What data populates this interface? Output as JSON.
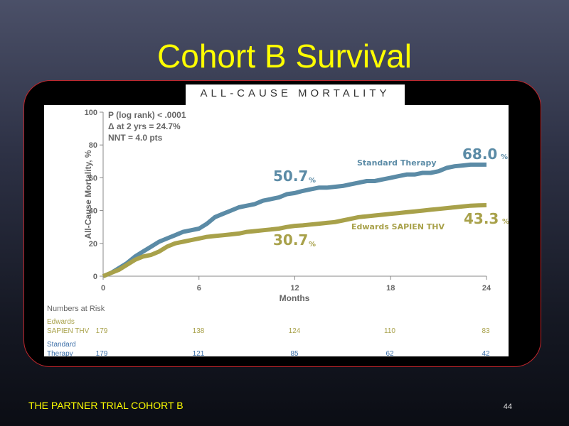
{
  "slide": {
    "title": "Cohort B Survival",
    "banner": "ALL-CAUSE MORTALITY",
    "footer": "THE PARTNER TRIAL COHORT B",
    "page_number": "44"
  },
  "chart_data": {
    "type": "line",
    "xlabel": "Months",
    "ylabel": "All-Cause Mortality, %",
    "xlim": [
      0,
      24
    ],
    "ylim": [
      0,
      100
    ],
    "x_ticks": [
      "0",
      "6",
      "12",
      "18",
      "24"
    ],
    "y_ticks": [
      "0",
      "20",
      "40",
      "60",
      "80",
      "100"
    ],
    "grid": false,
    "stats": [
      "P (log rank) < .0001",
      "Δ at 2 yrs = 24.7%",
      "NNT = 4.0 pts"
    ],
    "series": [
      {
        "name": "Standard Therapy",
        "color": "#5b8ba6",
        "x": [
          0,
          0.5,
          1,
          1.5,
          2,
          2.5,
          3,
          3.5,
          4,
          4.5,
          5,
          5.5,
          6,
          6.5,
          7,
          7.5,
          8,
          8.5,
          9,
          9.5,
          10,
          10.5,
          11,
          11.5,
          12,
          12.5,
          13,
          13.5,
          14,
          14.5,
          15,
          15.5,
          16,
          16.5,
          17,
          17.5,
          18,
          18.5,
          19,
          19.5,
          20,
          20.5,
          21,
          21.5,
          22,
          22.5,
          23,
          23.5,
          24
        ],
        "values": [
          0,
          2,
          5,
          8,
          12,
          15,
          18,
          21,
          23,
          25,
          27,
          28,
          29,
          32,
          36,
          38,
          40,
          42,
          43,
          44,
          46,
          47,
          48,
          50,
          50.7,
          52,
          53,
          54,
          54,
          54.5,
          55,
          56,
          57,
          58,
          58,
          59,
          60,
          61,
          62,
          62,
          63,
          63,
          64,
          66,
          67,
          67.5,
          68,
          68,
          68
        ],
        "end_label": "68.0",
        "mid_label": "50.7"
      },
      {
        "name": "Edwards SAPIEN THV",
        "color": "#a8a14a",
        "x": [
          0,
          0.5,
          1,
          1.5,
          2,
          2.5,
          3,
          3.5,
          4,
          4.5,
          5,
          5.5,
          6,
          6.5,
          7,
          7.5,
          8,
          8.5,
          9,
          9.5,
          10,
          10.5,
          11,
          11.5,
          12,
          12.5,
          13,
          13.5,
          14,
          14.5,
          15,
          15.5,
          16,
          16.5,
          17,
          17.5,
          18,
          18.5,
          19,
          19.5,
          20,
          20.5,
          21,
          21.5,
          22,
          22.5,
          23,
          23.5,
          24
        ],
        "values": [
          0,
          2,
          4,
          7,
          10,
          12,
          13,
          15,
          18,
          20,
          21,
          22,
          23,
          24,
          24.5,
          25,
          25.5,
          26,
          27,
          27.5,
          28,
          28.5,
          29,
          30,
          30.7,
          31,
          31.5,
          32,
          32.5,
          33,
          34,
          35,
          36,
          36.5,
          37,
          37.5,
          38,
          38.5,
          39,
          39.5,
          40,
          40.5,
          41,
          41.5,
          42,
          42.5,
          43,
          43.2,
          43.3
        ],
        "end_label": "43.3",
        "mid_label": "30.7"
      }
    ],
    "numbers_at_risk": {
      "title": "Numbers at Risk",
      "rows": [
        {
          "label_line1": "Edwards",
          "label_line2": "SAPIEN THV",
          "color": "#a8a14a",
          "values": [
            "179",
            "138",
            "124",
            "110",
            "83"
          ]
        },
        {
          "label_line1": "Standard",
          "label_line2": "Therapy",
          "color": "#3c6fa8",
          "values": [
            "179",
            "121",
            "85",
            "62",
            "42"
          ]
        }
      ]
    }
  }
}
